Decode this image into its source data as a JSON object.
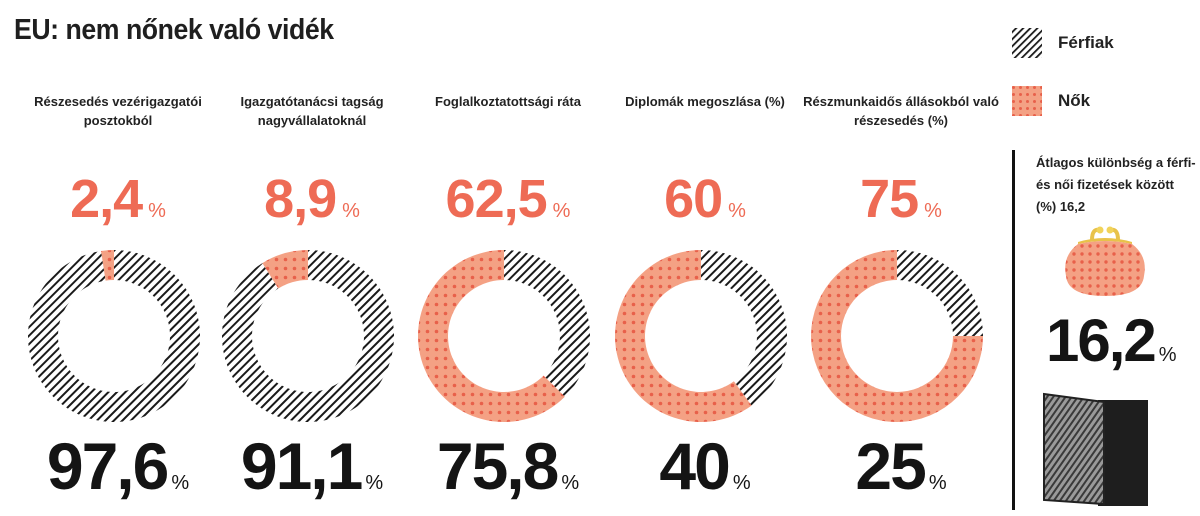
{
  "title": "EU: nem nőnek való vidék",
  "legend": {
    "men": "Férfiak",
    "women": "Nők"
  },
  "chart_data": {
    "type": "donut",
    "title": "EU: nem nőnek való vidék",
    "series_names": [
      "Férfiak",
      "Nők"
    ],
    "panels": [
      {
        "label": "Részesedés vezérigazgatói posztokból",
        "women": 2.4,
        "women_text": "2,4",
        "men": 97.6,
        "men_text": "97,6"
      },
      {
        "label": "Igazgatótanácsi tagság nagyvállalatoknál",
        "women": 8.9,
        "women_text": "8,9",
        "men": 91.1,
        "men_text": "91,1"
      },
      {
        "label": "Foglalkoztatottsági ráta",
        "women": 62.5,
        "women_text": "62,5",
        "men": 75.8,
        "men_text": "75,8"
      },
      {
        "label": "Diplomák megoszlása (%)",
        "women": 60,
        "women_text": "60",
        "men": 40,
        "men_text": "40"
      },
      {
        "label": "Részmunkaidős állásokból való részesedés (%)",
        "women": 75,
        "women_text": "75",
        "men": 25,
        "men_text": "25"
      }
    ],
    "percent_sign": "%"
  },
  "wage_gap": {
    "text": "Átlagos különbség a férfi- és női fizetések között (%)  16,2",
    "value": 16.2,
    "value_text": "16,2"
  },
  "colors": {
    "women": "#f4a184",
    "women_dot": "#e8604a",
    "women_text": "#ee6b55",
    "men": "#1a1a1a"
  }
}
